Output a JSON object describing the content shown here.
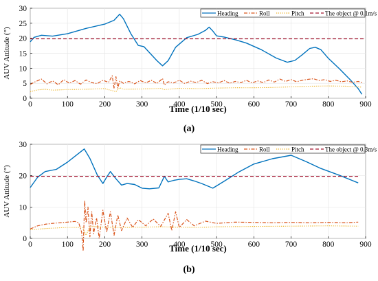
{
  "chart_data": [
    {
      "type": "line",
      "panel_label": "(a)",
      "xlabel": "Time (1/10 sec)",
      "ylabel": "AUV Attitude (°)",
      "xlim": [
        0,
        900
      ],
      "ylim": [
        0,
        30
      ],
      "x_ticks": [
        0,
        100,
        200,
        300,
        400,
        500,
        600,
        700,
        800,
        900
      ],
      "y_ticks": [
        0,
        5,
        10,
        15,
        20,
        25,
        30
      ],
      "grid": true,
      "legend_position": "top-right",
      "series": [
        {
          "name": "Heading",
          "style": "solid",
          "color": "#0072BD",
          "x": [
            0,
            10,
            30,
            60,
            100,
            150,
            200,
            225,
            240,
            250,
            270,
            290,
            305,
            320,
            340,
            355,
            370,
            390,
            420,
            450,
            470,
            480,
            490,
            500,
            520,
            550,
            580,
            620,
            660,
            690,
            710,
            730,
            750,
            765,
            780,
            800,
            830,
            860,
            880,
            890
          ],
          "y": [
            18.8,
            20.3,
            21.0,
            20.7,
            21.5,
            23.3,
            24.7,
            26.0,
            28.0,
            26.5,
            21.5,
            17.6,
            17.2,
            15.2,
            12.5,
            10.8,
            12.5,
            17.0,
            20.2,
            21.3,
            22.6,
            23.7,
            22.4,
            20.8,
            20.4,
            19.5,
            18.4,
            16.2,
            13.4,
            12.0,
            12.6,
            14.5,
            16.6,
            17.0,
            16.2,
            13.3,
            9.8,
            6.0,
            3.2,
            1.3
          ]
        },
        {
          "name": "Roll",
          "style": "dashdot",
          "color": "#D95319",
          "x": [
            0,
            15,
            30,
            45,
            60,
            75,
            90,
            105,
            120,
            135,
            150,
            165,
            180,
            195,
            210,
            220,
            225,
            230,
            235,
            240,
            250,
            265,
            280,
            295,
            310,
            325,
            340,
            355,
            360,
            370,
            385,
            400,
            415,
            430,
            445,
            460,
            475,
            490,
            505,
            520,
            535,
            550,
            565,
            580,
            595,
            610,
            625,
            640,
            655,
            670,
            685,
            700,
            715,
            730,
            745,
            760,
            775,
            790,
            805,
            820,
            835,
            850,
            865,
            880,
            890
          ],
          "y": [
            4.6,
            5.6,
            6.4,
            4.8,
            5.8,
            4.5,
            6.2,
            5.0,
            5.9,
            4.7,
            6.1,
            5.2,
            4.9,
            6.0,
            5.3,
            7.5,
            3.2,
            7.2,
            3.4,
            5.8,
            5.0,
            5.6,
            4.8,
            5.9,
            5.1,
            6.0,
            4.9,
            6.6,
            4.4,
            5.5,
            5.1,
            6.0,
            4.9,
            5.7,
            5.2,
            6.0,
            4.9,
            5.5,
            5.1,
            5.9,
            5.0,
            5.6,
            5.2,
            6.0,
            5.1,
            5.8,
            5.2,
            6.1,
            5.4,
            6.4,
            5.6,
            6.2,
            5.5,
            6.0,
            6.3,
            6.5,
            5.9,
            6.2,
            5.6,
            6.0,
            5.5,
            5.8,
            5.3,
            5.6,
            5.2
          ]
        },
        {
          "name": "Pitch",
          "style": "dotted",
          "color": "#EDB120",
          "x": [
            0,
            20,
            40,
            60,
            100,
            150,
            200,
            230,
            240,
            250,
            300,
            350,
            360,
            400,
            450,
            500,
            550,
            600,
            650,
            700,
            750,
            800,
            850,
            890
          ],
          "y": [
            2.2,
            2.8,
            3.0,
            2.7,
            2.9,
            3.0,
            3.2,
            2.2,
            3.5,
            3.0,
            3.1,
            3.3,
            2.9,
            3.3,
            3.2,
            3.4,
            3.5,
            3.5,
            3.6,
            3.8,
            4.0,
            4.1,
            4.0,
            3.7
          ]
        },
        {
          "name": "The object @ 0.1m/s",
          "style": "dashed",
          "color": "#A2142F",
          "x": [
            0,
            900
          ],
          "y": [
            19.8,
            19.8
          ]
        }
      ]
    },
    {
      "type": "line",
      "panel_label": "(b)",
      "xlabel": "Time (1/10 sec)",
      "ylabel": "AUV Attitude (°)",
      "xlim": [
        0,
        900
      ],
      "ylim": [
        0,
        30
      ],
      "x_ticks": [
        0,
        100,
        200,
        300,
        400,
        500,
        600,
        700,
        800,
        900
      ],
      "y_ticks": [
        0,
        10,
        20,
        30
      ],
      "grid": true,
      "legend_position": "top-right",
      "series": [
        {
          "name": "Heading",
          "style": "solid",
          "color": "#0072BD",
          "x": [
            0,
            20,
            40,
            70,
            100,
            120,
            145,
            160,
            180,
            195,
            205,
            215,
            230,
            245,
            260,
            280,
            300,
            320,
            345,
            360,
            370,
            385,
            400,
            420,
            440,
            460,
            480,
            490,
            520,
            560,
            600,
            650,
            700,
            740,
            780,
            830,
            880
          ],
          "y": [
            16.2,
            19.5,
            21.3,
            22.0,
            24.3,
            26.2,
            28.5,
            25.5,
            20.2,
            17.5,
            19.5,
            21.3,
            19.0,
            17.0,
            17.5,
            17.2,
            16.0,
            15.8,
            16.1,
            19.8,
            18.0,
            18.5,
            18.8,
            19.0,
            18.3,
            17.5,
            16.5,
            16.0,
            18.2,
            21.2,
            23.7,
            25.4,
            26.5,
            24.5,
            22.3,
            20.1,
            17.7
          ]
        },
        {
          "name": "Roll",
          "style": "dashdot",
          "color": "#D95319",
          "x": [
            0,
            20,
            40,
            60,
            80,
            100,
            120,
            130,
            138,
            142,
            146,
            150,
            155,
            160,
            165,
            170,
            178,
            185,
            195,
            205,
            215,
            225,
            235,
            245,
            260,
            275,
            290,
            310,
            330,
            350,
            370,
            380,
            390,
            400,
            420,
            440,
            470,
            500,
            550,
            600,
            650,
            700,
            750,
            800,
            850,
            880
          ],
          "y": [
            3.0,
            4.0,
            4.5,
            4.8,
            5.0,
            5.2,
            5.4,
            5.0,
            2.0,
            -4.0,
            12.0,
            5.0,
            10.0,
            0.5,
            8.5,
            1.5,
            6.5,
            0.0,
            9.0,
            2.0,
            8.5,
            1.0,
            7.5,
            2.5,
            6.5,
            3.5,
            6.0,
            4.0,
            6.2,
            3.8,
            8.0,
            2.5,
            8.5,
            3.5,
            6.0,
            4.0,
            5.5,
            4.8,
            5.2,
            5.1,
            5.0,
            5.1,
            5.0,
            5.1,
            5.0,
            5.2
          ]
        },
        {
          "name": "Pitch",
          "style": "dotted",
          "color": "#EDB120",
          "x": [
            0,
            50,
            100,
            140,
            150,
            160,
            200,
            250,
            300,
            350,
            400,
            450,
            500,
            600,
            700,
            800,
            880
          ],
          "y": [
            2.8,
            3.2,
            3.5,
            3.5,
            1.0,
            3.8,
            3.6,
            3.5,
            3.6,
            3.7,
            3.6,
            3.5,
            3.7,
            3.8,
            3.9,
            4.0,
            3.9
          ]
        },
        {
          "name": "The object @ 0.3m/s",
          "style": "dashed",
          "color": "#A2142F",
          "x": [
            0,
            880
          ],
          "y": [
            19.8,
            19.8
          ]
        }
      ]
    }
  ]
}
